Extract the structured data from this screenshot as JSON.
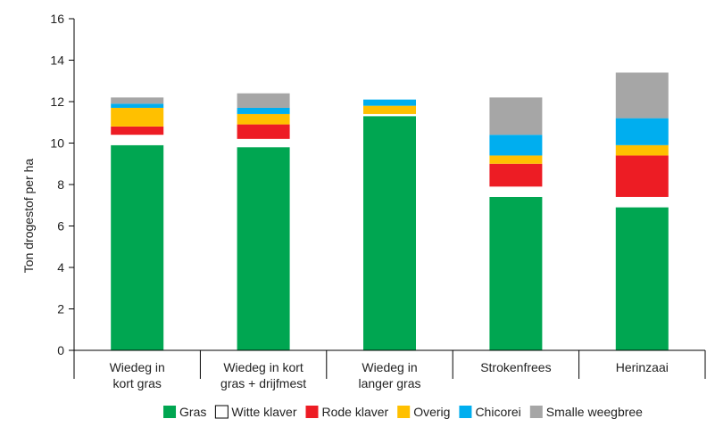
{
  "chart_data": {
    "type": "bar",
    "stacked": true,
    "title": "",
    "xlabel": "",
    "ylabel": "Ton drogestof per ha",
    "ylim": [
      0,
      16
    ],
    "yticks": [
      0,
      2,
      4,
      6,
      8,
      10,
      12,
      14,
      16
    ],
    "grid": false,
    "legend_position": "bottom",
    "categories": [
      [
        "Wiedeg in",
        "kort gras"
      ],
      [
        "Wiedeg in kort",
        "gras + drijfmest"
      ],
      [
        "Wiedeg in",
        "langer gras"
      ],
      [
        "Strokenfrees"
      ],
      [
        "Herinzaai"
      ]
    ],
    "series": [
      {
        "name": "Gras",
        "color": "#00a651",
        "values": [
          9.9,
          9.8,
          11.3,
          7.4,
          6.9
        ]
      },
      {
        "name": "Witte klaver",
        "color": "#ffffff",
        "values": [
          0.5,
          0.4,
          0.1,
          0.5,
          0.5
        ]
      },
      {
        "name": "Rode klaver",
        "color": "#ed1c24",
        "values": [
          0.4,
          0.7,
          0.0,
          1.1,
          2.0
        ]
      },
      {
        "name": "Overig",
        "color": "#ffc000",
        "values": [
          0.9,
          0.5,
          0.4,
          0.4,
          0.5
        ]
      },
      {
        "name": "Chicorei",
        "color": "#00aeef",
        "values": [
          0.2,
          0.3,
          0.3,
          1.0,
          1.3
        ]
      },
      {
        "name": "Smalle weegbree",
        "color": "#a6a6a6",
        "values": [
          0.3,
          0.7,
          0.0,
          1.8,
          2.2
        ]
      }
    ]
  }
}
